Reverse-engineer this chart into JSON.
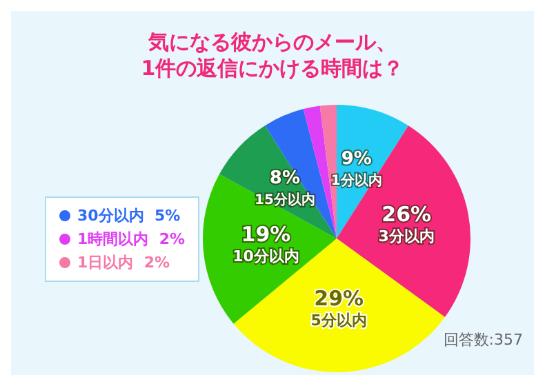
{
  "chart_data": {
    "type": "pie",
    "title": "気になる彼からのメール、\n1件の返信にかける時間は？",
    "categories": [
      "1分以内",
      "3分以内",
      "5分以内",
      "10分以内",
      "15分以内",
      "30分以内",
      "1時間以内",
      "1日以内"
    ],
    "values": [
      9,
      26,
      29,
      19,
      8,
      5,
      2,
      2
    ],
    "value_labels": [
      "9%",
      "26%",
      "29%",
      "19%",
      "8%",
      "5%",
      "2%",
      "2%"
    ],
    "colors": [
      "#22ccf5",
      "#f5287a",
      "#fafa00",
      "#33cc00",
      "#1e9e50",
      "#2f6cf5",
      "#e040f5",
      "#f57aa8"
    ],
    "legend": "left",
    "annotations": [
      "回答数:357"
    ]
  }
}
